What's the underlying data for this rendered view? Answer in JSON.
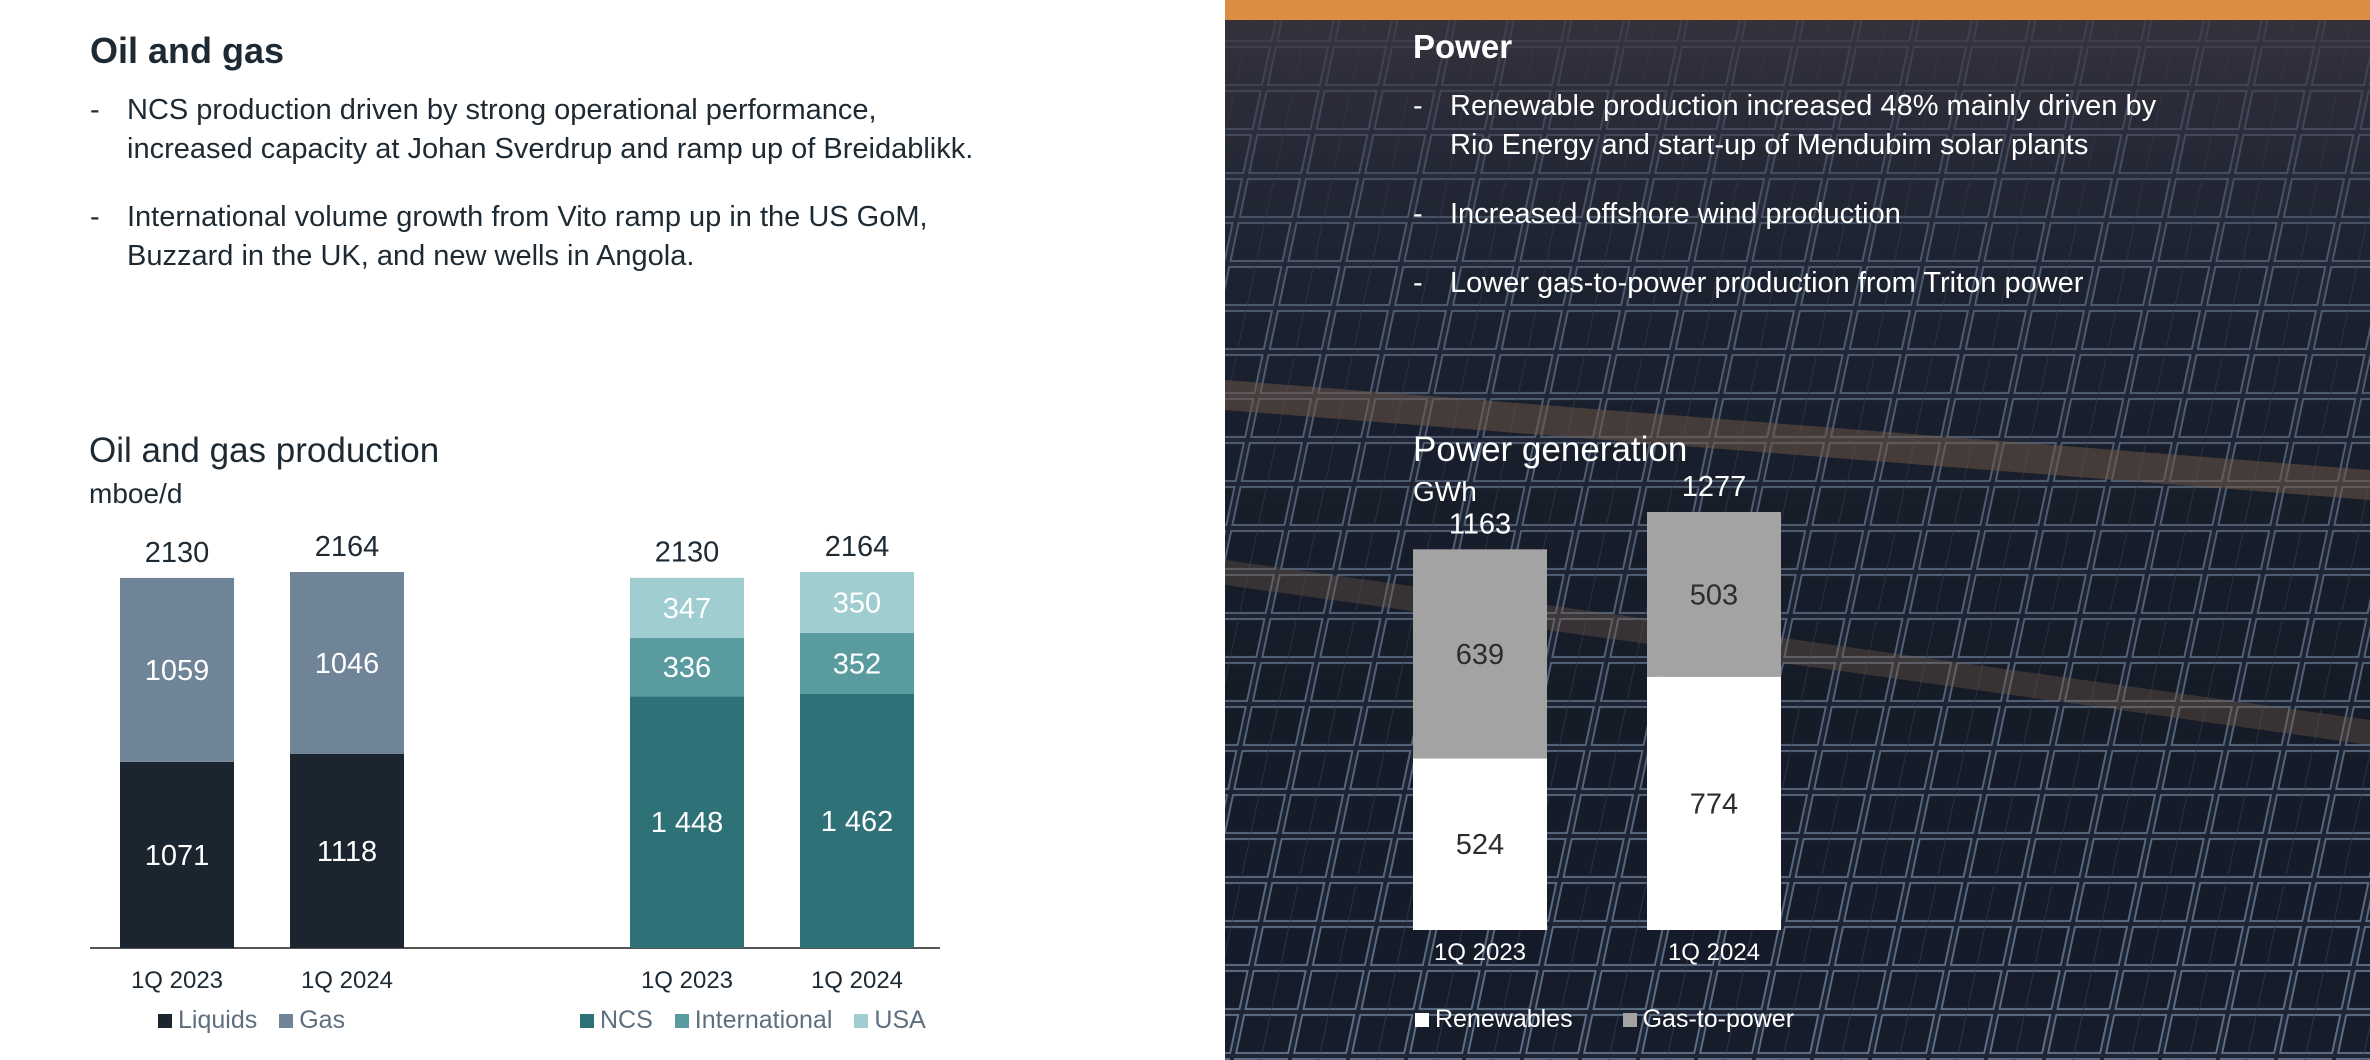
{
  "colors": {
    "liquids": "#1b252f",
    "gas": "#6f8597",
    "ncs": "#2e7278",
    "international": "#5a9ba0",
    "usa": "#9fcdd0",
    "renewables": "#ffffff",
    "gas_to_power": "#a3a3a3"
  },
  "oil_gas": {
    "heading": "Oil and gas",
    "bullets": [
      {
        "dash": "-",
        "line1": "NCS production driven by strong operational performance,",
        "line2": "increased capacity at Johan Sverdrup and ramp up of Breidablikk."
      },
      {
        "dash": "-",
        "line1": "International volume growth from Vito ramp up in the US GoM,",
        "line2": "Buzzard in the UK, and new wells in Angola."
      }
    ],
    "chart_title": "Oil and gas production",
    "unit": "mboe/d"
  },
  "power": {
    "heading": "Power",
    "bullets": [
      {
        "dash": "-",
        "line1": "Renewable production increased 48% mainly driven by",
        "line2": "Rio Energy and start-up of Mendubim solar plants"
      },
      {
        "dash": "-",
        "line1": "Increased offshore wind production",
        "line2": ""
      },
      {
        "dash": "-",
        "line1": "Lower gas-to-power production from Triton power",
        "line2": ""
      }
    ],
    "chart_title": "Power generation",
    "unit": "GWh"
  },
  "chart_data": [
    {
      "type": "bar",
      "stacked": true,
      "title": "Oil and gas production",
      "ylabel": "mboe/d",
      "categories": [
        "1Q 2023",
        "1Q 2024"
      ],
      "series": [
        {
          "name": "Liquids",
          "key": "liquids",
          "values": [
            1071,
            1118
          ],
          "labels": [
            "1071",
            "1118"
          ]
        },
        {
          "name": "Gas",
          "key": "gas",
          "values": [
            1059,
            1046
          ],
          "labels": [
            "1059",
            "1046"
          ]
        }
      ],
      "totals": [
        "2130",
        "2164"
      ],
      "ylim": [
        0,
        2400
      ]
    },
    {
      "type": "bar",
      "stacked": true,
      "title": "Oil and gas production",
      "ylabel": "mboe/d",
      "categories": [
        "1Q 2023",
        "1Q 2024"
      ],
      "series": [
        {
          "name": "NCS",
          "key": "ncs",
          "values": [
            1448,
            1462
          ],
          "labels": [
            "1 448",
            "1 462"
          ]
        },
        {
          "name": "International",
          "key": "international",
          "values": [
            336,
            352
          ],
          "labels": [
            "336",
            "352"
          ]
        },
        {
          "name": "USA",
          "key": "usa",
          "values": [
            347,
            350
          ],
          "labels": [
            "347",
            "350"
          ]
        }
      ],
      "totals": [
        "2130",
        "2164"
      ],
      "ylim": [
        0,
        2400
      ]
    },
    {
      "type": "bar",
      "stacked": true,
      "title": "Power generation",
      "ylabel": "GWh",
      "categories": [
        "1Q 2023",
        "1Q 2024"
      ],
      "series": [
        {
          "name": "Renewables",
          "key": "renewables",
          "values": [
            524,
            774
          ],
          "labels": [
            "524",
            "774"
          ]
        },
        {
          "name": "Gas-to-power",
          "key": "gas_to_power",
          "values": [
            639,
            503
          ],
          "labels": [
            "639",
            "503"
          ]
        }
      ],
      "totals": [
        "1163",
        "1277"
      ],
      "ylim": [
        0,
        1400
      ]
    }
  ]
}
